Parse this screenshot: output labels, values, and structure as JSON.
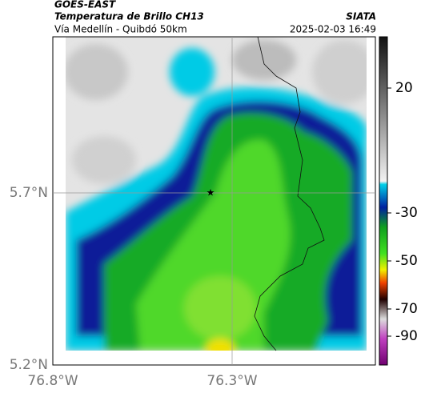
{
  "header": {
    "source": "GOES-EAST",
    "title": "Temperatura de Brillo CH13",
    "org": "SIATA",
    "route": "Vía Medellín - Quibdó 50km",
    "timestamp": "2025-02-03 16:49"
  },
  "map": {
    "lat_labels": [
      "5.7°N",
      "5.2°N"
    ],
    "lon_labels": [
      "76.8°W",
      "76.3°W"
    ]
  },
  "colorbar": {
    "tick_labels": [
      "20",
      "-30",
      "-50",
      "-70",
      "-90"
    ]
  }
}
